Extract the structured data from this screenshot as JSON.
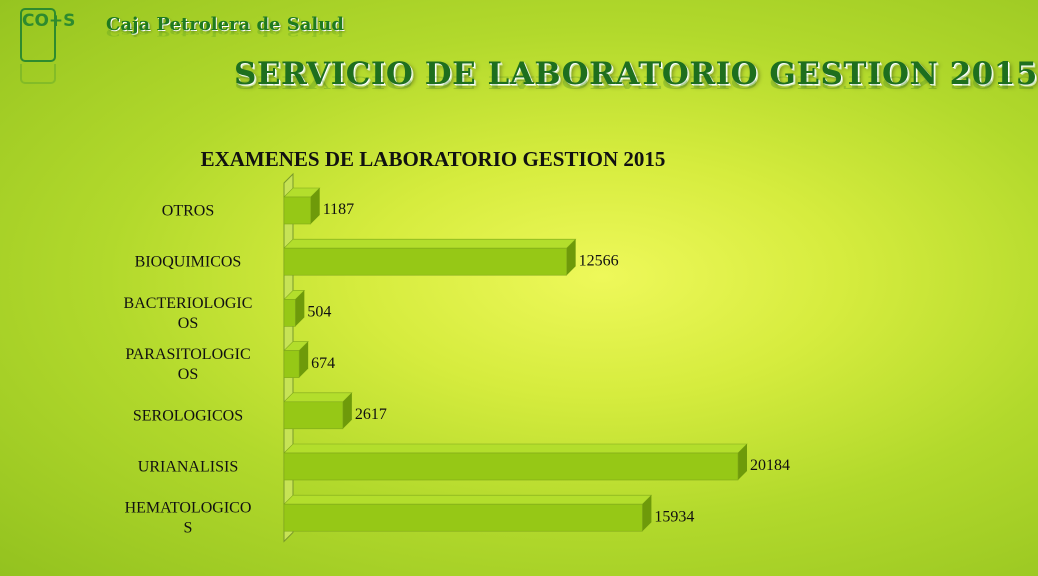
{
  "header": {
    "logo_text": "CO+S",
    "org_name": "Caja Petrolera de Salud",
    "title": "SERVICIO DE LABORATORIO GESTION 2015"
  },
  "colors": {
    "bar_front": "#96c816",
    "bar_top": "#b3de2c",
    "bar_side": "#6e9a0a",
    "title_green": "#1e6f1e"
  },
  "chart_data": {
    "type": "bar",
    "orientation": "horizontal",
    "title": "EXAMENES DE LABORATORIO GESTION 2015",
    "categories": [
      [
        "OTROS"
      ],
      [
        "BIOQUIMICOS"
      ],
      [
        "BACTERIOLOGIC",
        "OS"
      ],
      [
        "PARASITOLOGIC",
        "OS"
      ],
      [
        "SEROLOGICOS"
      ],
      [
        "URIANALISIS"
      ],
      [
        "HEMATOLOGICO",
        "S"
      ]
    ],
    "values": [
      1187,
      12566,
      504,
      674,
      2617,
      20184,
      15934
    ],
    "xlim": [
      0,
      20184
    ],
    "grid": false,
    "legend": "none",
    "style": "3d"
  }
}
